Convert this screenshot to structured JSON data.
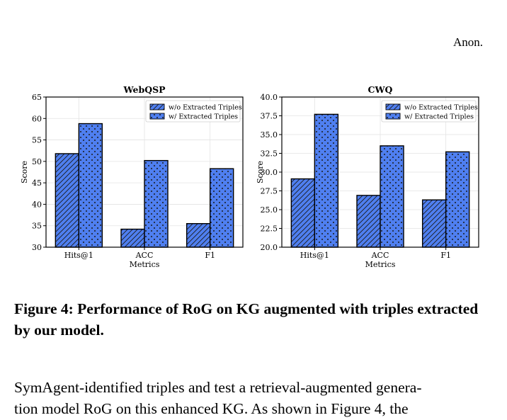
{
  "header": {
    "right": "Anon."
  },
  "chart_data": [
    {
      "type": "bar",
      "title": "WebQSP",
      "xlabel": "Metrics",
      "ylabel": "Score",
      "categories": [
        "Hits@1",
        "ACC",
        "F1"
      ],
      "ylim": [
        30,
        65
      ],
      "yticks": [
        30,
        35,
        40,
        45,
        50,
        55,
        60,
        65
      ],
      "grid": true,
      "legend_placement": "top-right",
      "series": [
        {
          "name": "w/o Extracted Triples",
          "values": [
            51.8,
            34.2,
            35.5
          ],
          "color": "#4f7ff0",
          "hatch": "diagonal"
        },
        {
          "name": "w/ Extracted Triples",
          "values": [
            58.8,
            50.2,
            48.3
          ],
          "color": "#4f7ff0",
          "hatch": "dots"
        }
      ]
    },
    {
      "type": "bar",
      "title": "CWQ",
      "xlabel": "Metrics",
      "ylabel": "Score",
      "categories": [
        "Hits@1",
        "ACC",
        "F1"
      ],
      "ylim": [
        20,
        40
      ],
      "yticks": [
        "20.0",
        "22.5",
        "25.0",
        "27.5",
        "30.0",
        "32.5",
        "35.0",
        "37.5",
        "40.0"
      ],
      "grid": true,
      "legend_placement": "top-right",
      "series": [
        {
          "name": "w/o Extracted Triples",
          "values": [
            29.1,
            26.9,
            26.3
          ],
          "color": "#4f7ff0",
          "hatch": "diagonal"
        },
        {
          "name": "w/ Extracted Triples",
          "values": [
            37.7,
            33.5,
            32.7
          ],
          "color": "#4f7ff0",
          "hatch": "dots"
        }
      ]
    }
  ],
  "caption": "Figure 4: Performance of RoG on KG augmented with triples extracted by our model.",
  "body_text": [
    "SymAgent-identified triples and test a retrieval-augmented genera-",
    "tion model RoG on this enhanced KG. As shown in Figure 4, the"
  ]
}
